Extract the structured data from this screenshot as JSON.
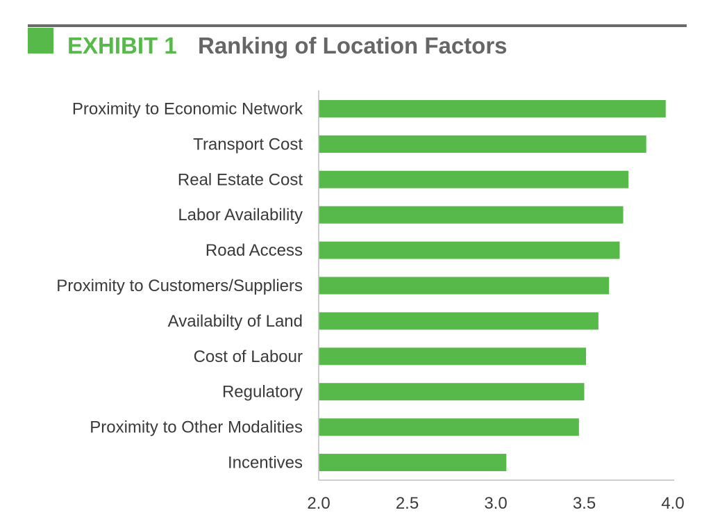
{
  "header": {
    "exhibit": "EXHIBIT 1",
    "title": "Ranking of Location Factors"
  },
  "colors": {
    "bar": "#57b94a",
    "accent": "#57b94a",
    "rule": "#6a6a6a",
    "axis": "#bdbdbd"
  },
  "chart_data": {
    "type": "bar",
    "orientation": "horizontal",
    "title": "Ranking of Location Factors",
    "xlabel": "",
    "ylabel": "",
    "xlim": [
      2.0,
      4.0
    ],
    "ticks": [
      "2.0",
      "2.5",
      "3.0",
      "3.5",
      "4.0"
    ],
    "tick_values": [
      2.0,
      2.5,
      3.0,
      3.5,
      4.0
    ],
    "categories": [
      "Proximity to Economic Network",
      "Transport Cost",
      "Real Estate Cost",
      "Labor Availability",
      "Road Access",
      "Proximity to Customers/Suppliers",
      "Availabilty of Land",
      "Cost of Labour",
      "Regulatory",
      "Proximity to Other Modalities",
      "Incentives"
    ],
    "values": [
      3.96,
      3.85,
      3.75,
      3.72,
      3.7,
      3.64,
      3.58,
      3.51,
      3.5,
      3.47,
      3.06
    ],
    "grid": false,
    "legend": "none"
  }
}
